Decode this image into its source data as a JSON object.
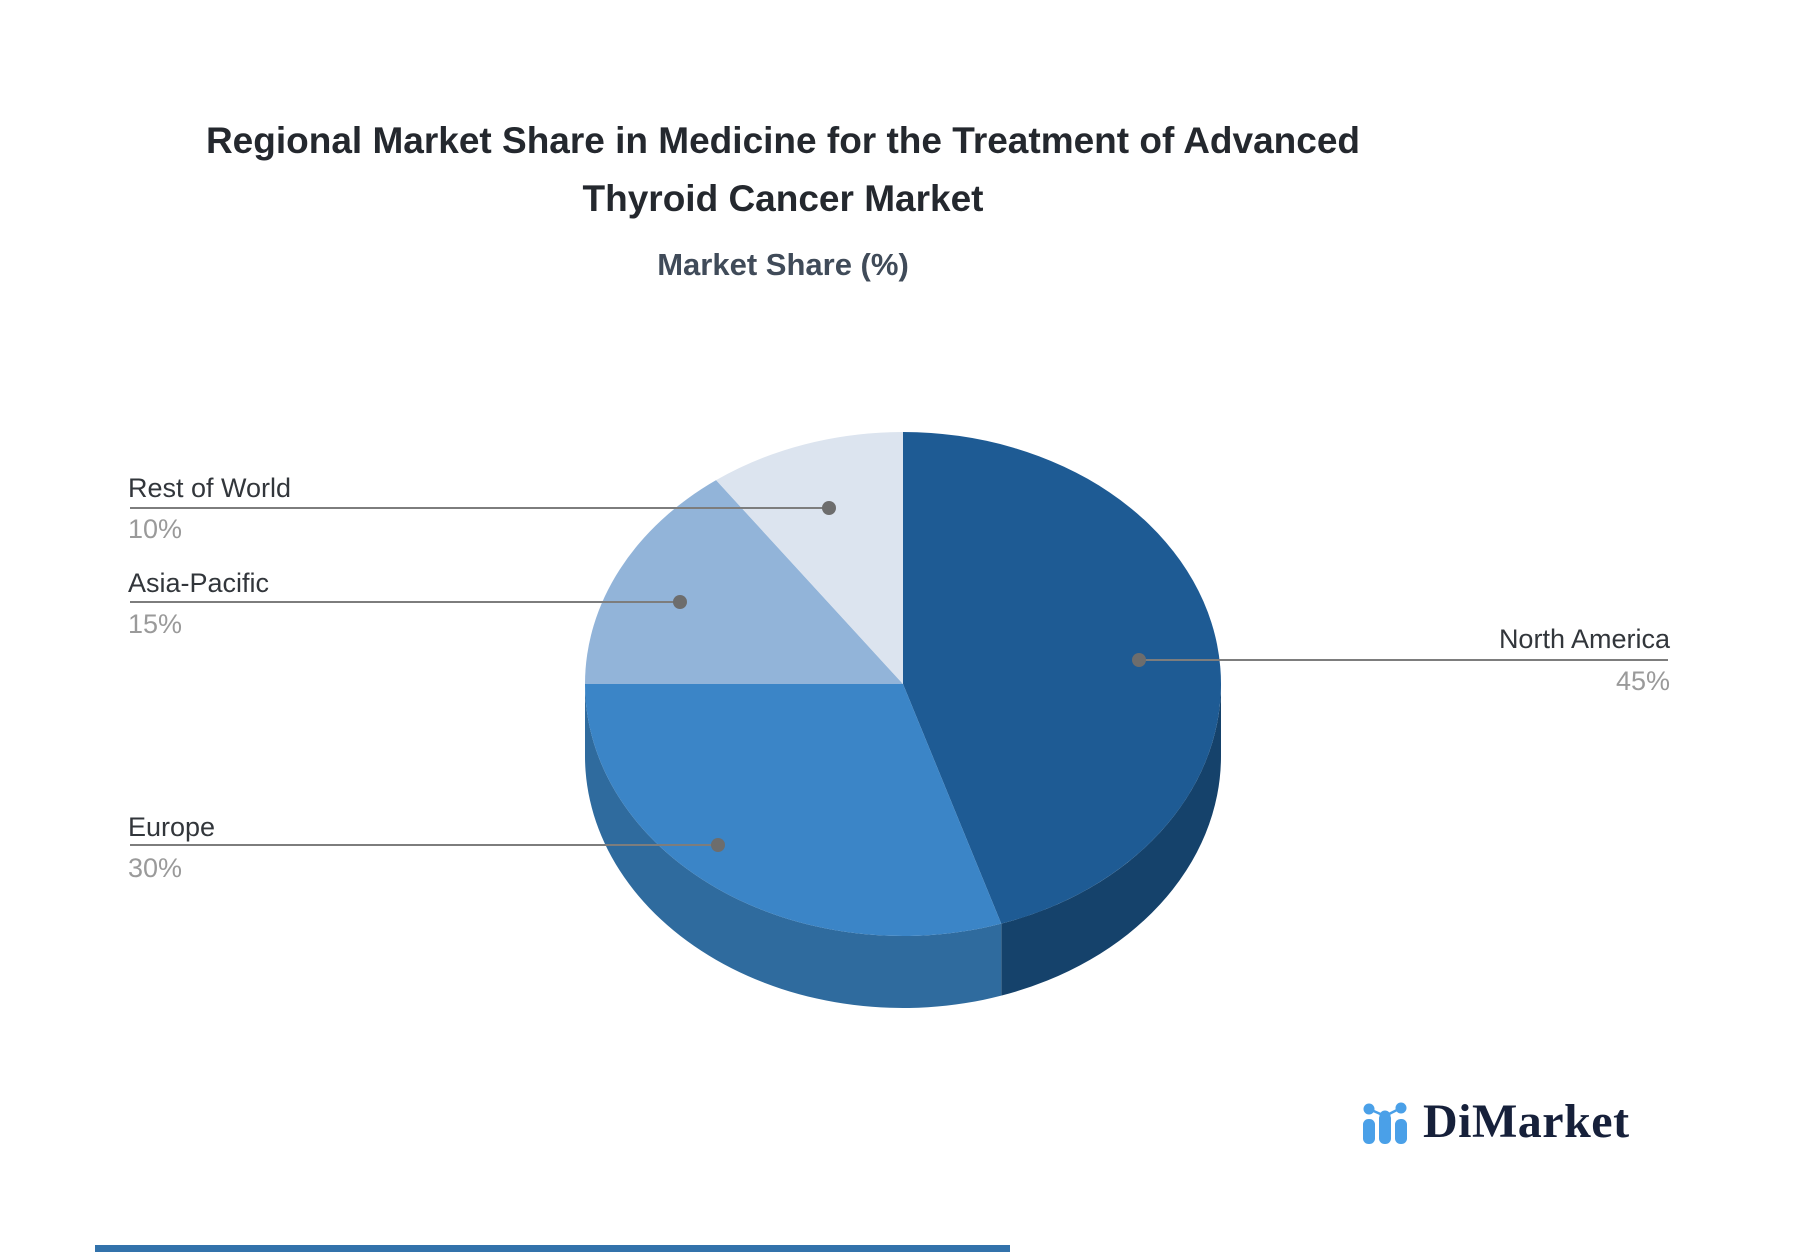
{
  "chart_data": {
    "type": "pie",
    "title": "Regional Market Share in Medicine for the Treatment of Advanced Thyroid Cancer Market",
    "subtitle": "Market Share (%)",
    "unit": "%",
    "legend_position": "callout-labels",
    "pie_style": "3d",
    "slices": [
      {
        "id": "north-america",
        "label": "North America",
        "value": 45,
        "pct": "45%",
        "color": "#1e5b94",
        "shade": "#15426b"
      },
      {
        "id": "europe",
        "label": "Europe",
        "value": 30,
        "pct": "30%",
        "color": "#3b85c7",
        "shade": "#2f6b9e"
      },
      {
        "id": "asia-pacific",
        "label": "Asia-Pacific",
        "value": 15,
        "pct": "15%",
        "color": "#92b4d9",
        "shade": "#7795b8"
      },
      {
        "id": "rest-of-world",
        "label": "Rest of World",
        "value": 10,
        "pct": "10%",
        "color": "#dce4ef",
        "shade": "#b6bfce"
      }
    ],
    "style": {
      "leader_line_color": "#7d7d7d",
      "dot_color": "#6d6d6d",
      "label_color": "#32363b",
      "pct_color": "#9a9a9a"
    }
  },
  "logo": {
    "text": "DiMarket",
    "icon": "bar-line-chart-icon",
    "text_color": "#16203a",
    "icon_color": "#4aa0e8"
  },
  "accent_bar_color": "#3272ab"
}
